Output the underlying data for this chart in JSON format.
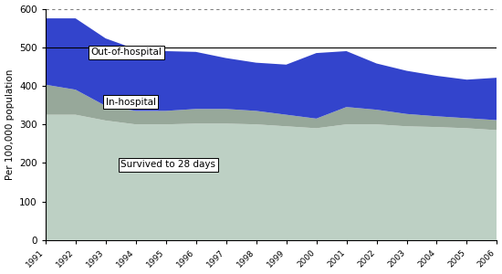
{
  "years": [
    1991,
    1992,
    1993,
    1994,
    1995,
    1996,
    1997,
    1998,
    1999,
    2000,
    2001,
    2002,
    2003,
    2004,
    2005,
    2006
  ],
  "survived": [
    325,
    325,
    310,
    300,
    300,
    302,
    302,
    300,
    295,
    290,
    300,
    300,
    295,
    293,
    290,
    285
  ],
  "in_hospital": [
    78,
    65,
    38,
    35,
    35,
    38,
    38,
    35,
    30,
    25,
    45,
    38,
    32,
    28,
    26,
    26
  ],
  "out_of_hospital": [
    172,
    185,
    175,
    160,
    155,
    148,
    132,
    125,
    130,
    170,
    145,
    120,
    112,
    105,
    100,
    110
  ],
  "survived_color": "#bdd0c4",
  "in_hospital_color": "#97a89a",
  "out_of_hospital_color": "#3344cc",
  "ylabel": "Per 100,000 population",
  "ylim": [
    0,
    600
  ],
  "yticks": [
    0,
    100,
    200,
    300,
    400,
    500,
    600
  ],
  "hline_500": 500,
  "survived_label": "Survived to 28 days",
  "in_hospital_label": "In-hospital",
  "out_of_hospital_label": "Out-of-hospital",
  "background_color": "#ffffff"
}
